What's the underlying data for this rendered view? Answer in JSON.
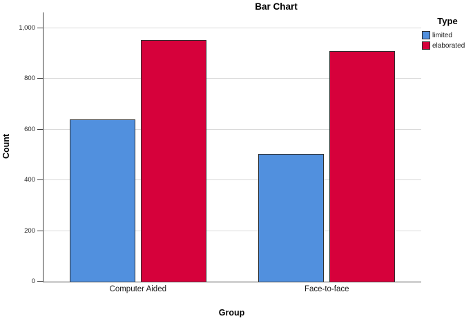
{
  "chart_data": {
    "type": "bar",
    "title": "Bar Chart",
    "xlabel": "Group",
    "ylabel": "Count",
    "categories": [
      "Computer Aided",
      "Face-to-face"
    ],
    "series": [
      {
        "name": "limited",
        "color": "#5190DE",
        "values": [
          640,
          505
        ]
      },
      {
        "name": "elaborated",
        "color": "#D6013B",
        "values": [
          955,
          910
        ]
      }
    ],
    "ylim": [
      0,
      1063
    ],
    "yticks": [
      0,
      200,
      400,
      600,
      800,
      1000
    ],
    "ytick_labels": [
      "0",
      "200",
      "400",
      "600",
      "800",
      "1,000"
    ],
    "grid": "horizontal",
    "legend": {
      "title": "Type",
      "position": "top-right"
    },
    "colors": {
      "gridline": "#d9d9d9",
      "axis": "#404040",
      "bar_border": "#2e2e2e"
    }
  }
}
